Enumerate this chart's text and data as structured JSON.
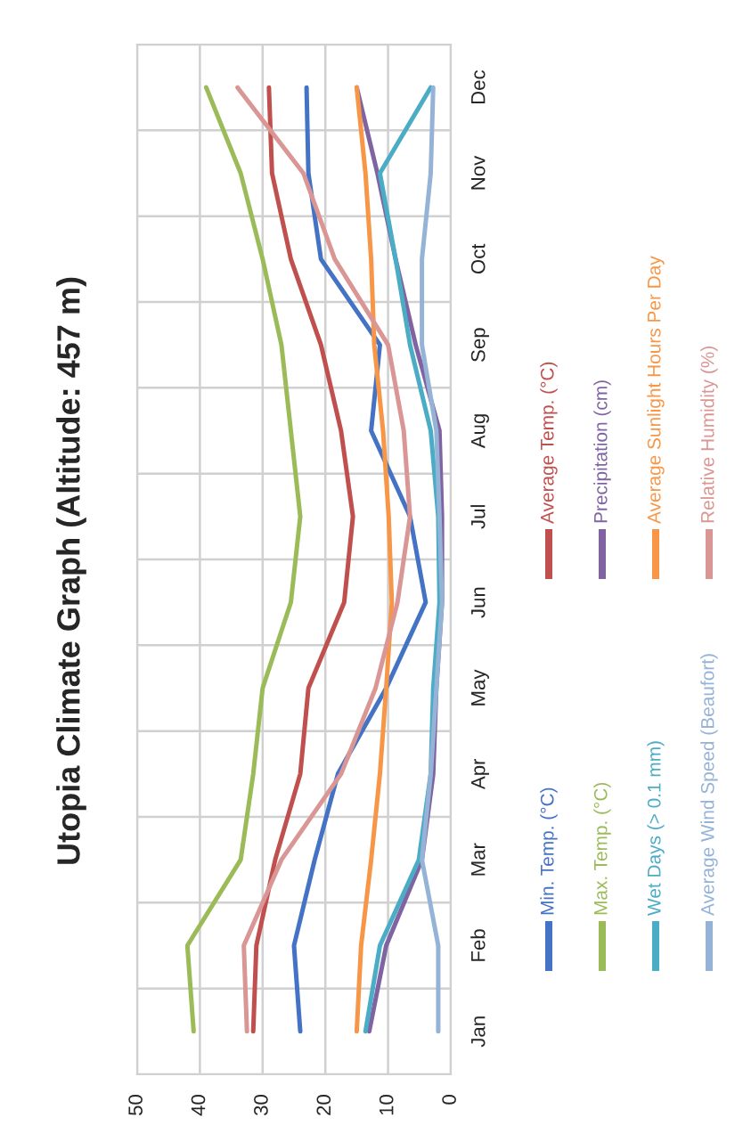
{
  "chart_data": {
    "type": "line",
    "orientation": "horizontal",
    "title": "Utopia Climate Graph (Altitude: 457 m)",
    "categories": [
      "Dec",
      "Nov",
      "Oct",
      "Sep",
      "Aug",
      "Jul",
      "Jun",
      "May",
      "Apr",
      "Mar",
      "Feb",
      "Jan"
    ],
    "series": [
      {
        "name": "Min. Temp. (°C)",
        "color": "#4472c4",
        "values": [
          23,
          22.7,
          20.7,
          11.3,
          12.7,
          6.5,
          4,
          10.3,
          18,
          21.7,
          25,
          24
        ]
      },
      {
        "name": "Average Temp. (°C)",
        "color": "#c0504d",
        "values": [
          29,
          28.5,
          25.5,
          20.7,
          17.5,
          15.6,
          17,
          22.7,
          24,
          28,
          31,
          31.5
        ]
      },
      {
        "name": "Max. Temp. (°C)",
        "color": "#9bbb59",
        "values": [
          39,
          33.5,
          30,
          27,
          25.5,
          24,
          25.5,
          30,
          31.5,
          33.5,
          42,
          41
        ]
      },
      {
        "name": "Precipitation (cm)",
        "color": "#8064a2",
        "values": [
          15,
          11.7,
          8.8,
          5.6,
          1.8,
          1.4,
          1.4,
          2.3,
          2.8,
          4.6,
          10.3,
          13
        ]
      },
      {
        "name": "Wet Days (> 0.1 mm)",
        "color": "#4bacc6",
        "values": [
          3.2,
          11.3,
          8.8,
          6.5,
          3.2,
          2,
          1.8,
          2.8,
          3.2,
          5.1,
          11.3,
          13.6
        ]
      },
      {
        "name": "Average Sunlight Hours Per Day",
        "color": "#f79646",
        "values": [
          15,
          13.6,
          12.7,
          12.2,
          10.8,
          9.9,
          9.4,
          10.3,
          11.3,
          12.7,
          14.3,
          15
        ]
      },
      {
        "name": "Average Wind Speed (Beaufort)",
        "color": "#95b3d7",
        "values": [
          2.8,
          3.2,
          4.6,
          4.6,
          2.3,
          1.8,
          1.4,
          2.3,
          3.2,
          4.6,
          2,
          2
        ]
      },
      {
        "name": "Relative Humidity (%)",
        "color": "#da9694",
        "values": [
          34,
          23.5,
          18.5,
          10,
          7.5,
          6.5,
          8.5,
          12,
          17.5,
          27,
          33,
          32.5
        ]
      }
    ],
    "xlim": [
      50,
      0
    ],
    "xticks": [
      50,
      40,
      30,
      20,
      10,
      0
    ],
    "grid": true,
    "legend": "bottom",
    "marker": "none",
    "line_style": "solid"
  }
}
